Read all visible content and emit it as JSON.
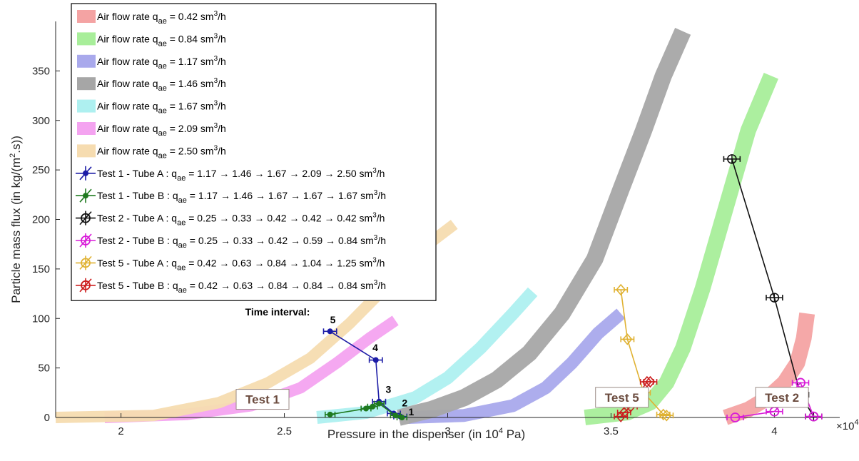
{
  "chart_data": {
    "type": "scatter",
    "title": "",
    "xlabel": "Pressure in the dispenser (in 10^4 Pa)",
    "xlabel_parts": [
      "Pressure in the dispenser (in 10",
      "4",
      " Pa)"
    ],
    "ylabel": "Particle mass flux (in kg/(m^2.s))",
    "ylabel_parts": [
      "Particle mass flux (in kg/(m",
      "2",
      ".s))"
    ],
    "x_exponent_label": "×10",
    "x_exponent_power": "4",
    "xlim": [
      1.8,
      4.2
    ],
    "ylim": [
      0,
      400
    ],
    "xticks": [
      2,
      2.5,
      3,
      3.5,
      4
    ],
    "xtick_labels": [
      "2",
      "2.5",
      "3",
      "3.5",
      "4"
    ],
    "yticks": [
      0,
      50,
      100,
      150,
      200,
      250,
      300,
      350
    ],
    "ytick_labels": [
      "0",
      "50",
      "100",
      "150",
      "200",
      "250",
      "300",
      "350"
    ],
    "legend_position": "top-left",
    "bands": [
      {
        "label_main": "Air flow rate q",
        "label_sub": "ae",
        "label_rest": " = 0.42 sm",
        "label_sup": "3",
        "label_end": "/h",
        "color": "#f4a3a3",
        "x": [
          3.85,
          3.92,
          3.98,
          4.03,
          4.07,
          4.09,
          4.1
        ],
        "y": [
          0,
          8,
          20,
          35,
          55,
          80,
          105
        ],
        "width": 22
      },
      {
        "label_main": "Air flow rate q",
        "label_sub": "ae",
        "label_rest": " = 0.84 sm",
        "label_sup": "3",
        "label_end": "/h",
        "color": "#a8ee9a",
        "x": [
          3.42,
          3.55,
          3.62,
          3.67,
          3.72,
          3.78,
          3.85,
          3.92,
          3.99
        ],
        "y": [
          0,
          5,
          15,
          35,
          70,
          130,
          210,
          290,
          345
        ],
        "width": 22
      },
      {
        "label_main": "Air flow rate q",
        "label_sub": "ae",
        "label_rest": " = 1.17 sm",
        "label_sup": "3",
        "label_end": "/h",
        "color": "#a9a9ec",
        "x": [
          2.88,
          3.05,
          3.2,
          3.3,
          3.38,
          3.46,
          3.53
        ],
        "y": [
          0,
          2,
          12,
          30,
          55,
          85,
          105
        ],
        "width": 18
      },
      {
        "label_main": "Air flow rate q",
        "label_sub": "ae",
        "label_rest": " = 1.46 sm",
        "label_sup": "3",
        "label_end": "/h",
        "color": "#a6a6a6",
        "x": [
          2.85,
          2.95,
          3.05,
          3.15,
          3.25,
          3.35,
          3.45,
          3.53,
          3.6,
          3.66,
          3.72
        ],
        "y": [
          0,
          8,
          20,
          38,
          65,
          105,
          160,
          230,
          290,
          345,
          390
        ],
        "width": 24
      },
      {
        "label_main": "Air flow rate q",
        "label_sub": "ae",
        "label_rest": " = 1.67 sm",
        "label_sup": "3",
        "label_end": "/h",
        "color": "#aef0f0",
        "x": [
          2.6,
          2.75,
          2.9,
          3.0,
          3.1,
          3.2,
          3.26
        ],
        "y": [
          0,
          5,
          20,
          40,
          70,
          105,
          127
        ],
        "width": 18
      },
      {
        "label_main": "Air flow rate q",
        "label_sub": "ae",
        "label_rest": " = 2.09 sm",
        "label_sup": "3",
        "label_end": "/h",
        "color": "#f4a3f0",
        "x": [
          1.95,
          2.2,
          2.4,
          2.55,
          2.66,
          2.76,
          2.84
        ],
        "y": [
          0,
          3,
          12,
          30,
          55,
          80,
          98
        ],
        "width": 16
      },
      {
        "label_main": "Air flow rate q",
        "label_sub": "ae",
        "label_rest": " = 2.50 sm",
        "label_sup": "3",
        "label_end": "/h",
        "color": "#f6dcb0",
        "x": [
          1.8,
          2.1,
          2.3,
          2.45,
          2.58,
          2.7,
          2.82,
          2.92,
          3.02
        ],
        "y": [
          0,
          2,
          15,
          35,
          60,
          95,
          135,
          170,
          195
        ],
        "width": 16
      }
    ],
    "series": [
      {
        "label_main": "Test 1 - Tube A : q",
        "label_sub": "ae",
        "label_rest": " =  1.17 → 1.46 → 1.67 → 2.09 → 2.50 sm",
        "label_sup": "3",
        "label_end": "/h",
        "color": "#1c1ca6",
        "marker": "dot",
        "x": [
          2.855,
          2.835,
          2.79,
          2.78,
          2.64
        ],
        "y": [
          1,
          4,
          16,
          58,
          87
        ],
        "xerr": 0.02
      },
      {
        "label_main": "Test 1 - Tube B : q",
        "label_sub": "ae",
        "label_rest": " =  1.17 → 1.46 → 1.67 → 1.67 → 1.67 sm",
        "label_sup": "3",
        "label_end": "/h",
        "color": "#1f7a1f",
        "marker": "dot",
        "x": [
          2.86,
          2.84,
          2.79,
          2.77,
          2.75,
          2.64
        ],
        "y": [
          0,
          2,
          14,
          11,
          9,
          3
        ],
        "xerr": 0.015
      },
      {
        "label_main": "Test 2 - Tube A : q",
        "label_sub": "ae",
        "label_rest": " =  0.25 → 0.33 → 0.42 → 0.42 → 0.42 sm",
        "label_sup": "3",
        "label_end": "/h",
        "color": "#111111",
        "marker": "circle-plus",
        "x": [
          3.87,
          4.0,
          4.08,
          4.12
        ],
        "y": [
          261,
          121,
          23,
          1
        ],
        "xerr": 0.025
      },
      {
        "label_main": "Test 2 - Tube B : q",
        "label_sub": "ae",
        "label_rest": " =  0.25 → 0.33 → 0.42 → 0.59 → 0.84 sm",
        "label_sup": "3",
        "label_end": "/h",
        "color": "#d81bd8",
        "marker": "circle",
        "x": [
          3.88,
          4.0,
          4.08,
          4.12
        ],
        "y": [
          0,
          6,
          35,
          1
        ],
        "xerr": 0.025
      },
      {
        "label_main": "Test 5 - Tube A : q",
        "label_sub": "ae",
        "label_rest": " =  0.42 → 0.63 → 0.84 → 1.04 → 1.25 sm",
        "label_sup": "3",
        "label_end": "/h",
        "color": "#e0b233",
        "marker": "diamond",
        "x": [
          3.53,
          3.55,
          3.6,
          3.66,
          3.67
        ],
        "y": [
          129,
          79,
          25,
          3,
          2
        ],
        "xerr": 0.02
      },
      {
        "label_main": "Test 5 - Tube B : q",
        "label_sub": "ae",
        "label_rest": " =  0.42 → 0.63 → 0.84 → 0.84 → 0.84 sm",
        "label_sup": "3",
        "label_end": "/h",
        "color": "#cc1f1f",
        "marker": "diamond",
        "x": [
          3.53,
          3.54,
          3.56,
          3.61,
          3.62
        ],
        "y": [
          1,
          5,
          11,
          36,
          36
        ],
        "xerr": 0.02
      }
    ],
    "annotations": [
      {
        "text": "Time interval:",
        "x": 2.38,
        "y": 103
      },
      {
        "text": "5",
        "x": 2.64,
        "y": 95
      },
      {
        "text": "4",
        "x": 2.77,
        "y": 67
      },
      {
        "text": "3",
        "x": 2.81,
        "y": 25
      },
      {
        "text": "2",
        "x": 2.86,
        "y": 11
      },
      {
        "text": "1",
        "x": 2.88,
        "y": 2
      }
    ],
    "test_labels": [
      {
        "text": "Test 1",
        "x": 2.37,
        "y": 14
      },
      {
        "text": "Test 5",
        "x": 3.47,
        "y": 16
      },
      {
        "text": "Test 2",
        "x": 3.96,
        "y": 16
      }
    ]
  }
}
